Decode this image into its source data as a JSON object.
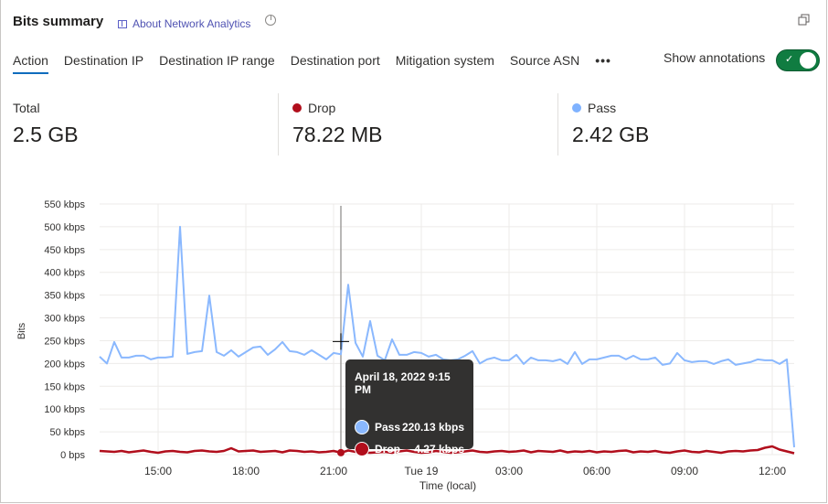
{
  "header": {
    "title": "Bits summary",
    "about_link": "About Network Analytics",
    "icons": [
      "book-icon",
      "clock-icon",
      "restore-icon"
    ]
  },
  "tabs": [
    {
      "label": "Action",
      "active": true
    },
    {
      "label": "Destination IP"
    },
    {
      "label": "Destination IP range"
    },
    {
      "label": "Destination port"
    },
    {
      "label": "Mitigation system"
    },
    {
      "label": "Source ASN"
    },
    {
      "label": "•••"
    }
  ],
  "annotations": {
    "label": "Show annotations",
    "enabled": true,
    "color": "#107c41"
  },
  "stats": [
    {
      "label": "Total",
      "value": "2.5 GB"
    },
    {
      "label": "Drop",
      "value": "78.22 MB",
      "color": "#b10e1c"
    },
    {
      "label": "Pass",
      "value": "2.42 GB",
      "color": "#7fb2ff"
    }
  ],
  "tooltip": {
    "title": "April 18, 2022 9:15 PM",
    "rows": [
      {
        "name": "Pass",
        "value": "220.13 kbps",
        "color": "#8ab8fe"
      },
      {
        "name": "Drop",
        "value": "4.27 kbps",
        "color": "#b10e1c"
      }
    ]
  },
  "chart_data": {
    "type": "line",
    "ylabel": "Bits",
    "xlabel": "Time (local)",
    "ylim": [
      0,
      550
    ],
    "yticks": [
      "0 bps",
      "50 kbps",
      "100 kbps",
      "150 kbps",
      "200 kbps",
      "250 kbps",
      "300 kbps",
      "350 kbps",
      "400 kbps",
      "450 kbps",
      "500 kbps",
      "550 kbps"
    ],
    "xticks": [
      {
        "label": "15:00",
        "at": "15:00"
      },
      {
        "label": "18:00",
        "at": "18:00"
      },
      {
        "label": "21:00",
        "at": "21:00"
      },
      {
        "label": "Tue 19",
        "at": "00:00"
      },
      {
        "label": "03:00",
        "at": "03:00"
      },
      {
        "label": "06:00",
        "at": "06:00"
      },
      {
        "label": "09:00",
        "at": "09:00"
      },
      {
        "label": "12:00",
        "at": "12:00"
      }
    ],
    "grid": true,
    "x": [
      "13:00",
      "13:15",
      "13:30",
      "13:45",
      "14:00",
      "14:15",
      "14:30",
      "14:45",
      "15:00",
      "15:15",
      "15:30",
      "15:45",
      "16:00",
      "16:15",
      "16:30",
      "16:45",
      "17:00",
      "17:15",
      "17:30",
      "17:45",
      "18:00",
      "18:15",
      "18:30",
      "18:45",
      "19:00",
      "19:15",
      "19:30",
      "19:45",
      "20:00",
      "20:15",
      "20:30",
      "20:45",
      "21:00",
      "21:15",
      "21:30",
      "21:45",
      "22:00",
      "22:15",
      "22:30",
      "22:45",
      "23:00",
      "23:15",
      "23:30",
      "23:45",
      "00:00",
      "00:15",
      "00:30",
      "00:45",
      "01:00",
      "01:15",
      "01:30",
      "01:45",
      "02:00",
      "02:15",
      "02:30",
      "02:45",
      "03:00",
      "03:15",
      "03:30",
      "03:45",
      "04:00",
      "04:15",
      "04:30",
      "04:45",
      "05:00",
      "05:15",
      "05:30",
      "05:45",
      "06:00",
      "06:15",
      "06:30",
      "06:45",
      "07:00",
      "07:15",
      "07:30",
      "07:45",
      "08:00",
      "08:15",
      "08:30",
      "08:45",
      "09:00",
      "09:15",
      "09:30",
      "09:45",
      "10:00",
      "10:15",
      "10:30",
      "10:45",
      "11:00",
      "11:15",
      "11:30",
      "11:45",
      "12:00",
      "12:15",
      "12:30",
      "12:45"
    ],
    "series": [
      {
        "name": "Pass",
        "color": "#8ab8fe",
        "values": [
          215,
          200,
          247,
          213,
          213,
          217,
          217,
          209,
          213,
          213,
          215,
          500,
          221,
          225,
          227,
          349,
          225,
          217,
          229,
          215,
          225,
          235,
          237,
          219,
          231,
          247,
          227,
          225,
          219,
          229,
          219,
          209,
          223,
          220.13,
          373,
          245,
          215,
          293,
          217,
          207,
          253,
          219,
          219,
          225,
          223,
          215,
          219,
          209,
          207,
          209,
          217,
          227,
          200,
          209,
          213,
          207,
          207,
          219,
          199,
          213,
          207,
          207,
          205,
          209,
          199,
          225,
          199,
          209,
          209,
          213,
          217,
          217,
          209,
          217,
          209,
          209,
          213,
          197,
          200,
          223,
          207,
          203,
          205,
          205,
          199,
          205,
          209,
          197,
          200,
          203,
          209,
          207,
          207,
          199,
          209,
          16
        ]
      },
      {
        "name": "Drop",
        "color": "#b10e1c",
        "values": [
          8,
          7,
          6,
          8,
          5,
          7,
          9,
          6,
          4,
          7,
          8,
          6,
          5,
          8,
          9,
          7,
          6,
          8,
          14,
          7,
          8,
          9,
          6,
          7,
          8,
          5,
          9,
          8,
          6,
          7,
          5,
          6,
          8,
          4.27,
          9,
          6,
          5,
          4,
          5,
          6,
          4,
          7,
          9,
          6,
          4,
          5,
          8,
          6,
          4,
          5,
          7,
          9,
          6,
          5,
          7,
          8,
          6,
          7,
          9,
          5,
          8,
          7,
          6,
          9,
          5,
          7,
          6,
          8,
          5,
          7,
          6,
          8,
          9,
          5,
          7,
          6,
          8,
          5,
          4,
          7,
          9,
          6,
          5,
          8,
          6,
          4,
          7,
          8,
          7,
          9,
          10,
          15,
          18,
          11,
          7,
          3
        ]
      }
    ],
    "hover_index": 33
  }
}
